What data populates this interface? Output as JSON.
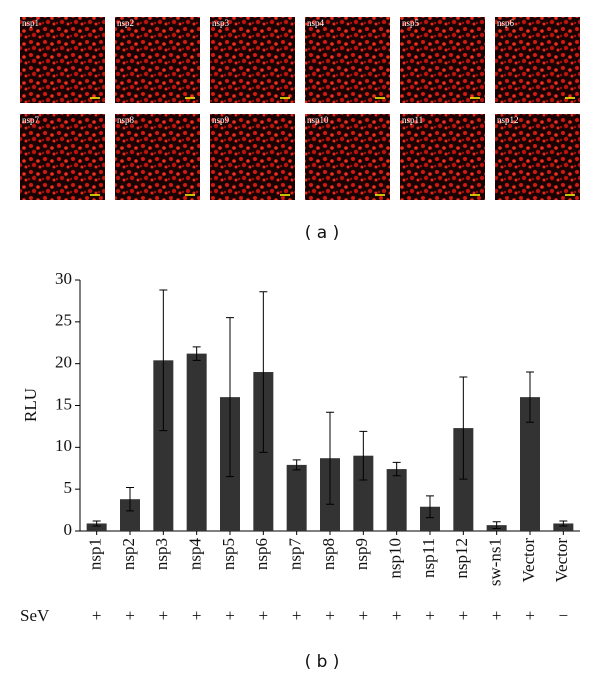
{
  "panel_a": {
    "labels": [
      "nsp1",
      "nsp2",
      "nsp3",
      "nsp4",
      "nsp5",
      "nsp6",
      "nsp7",
      "nsp8",
      "nsp9",
      "nsp10",
      "nsp11",
      "nsp12"
    ],
    "caption": "( a )"
  },
  "chart_data": {
    "type": "bar",
    "ylabel": "RLU",
    "categories": [
      "nsp1",
      "nsp2",
      "nsp3",
      "nsp4",
      "nsp5",
      "nsp6",
      "nsp7",
      "nsp8",
      "nsp9",
      "nsp10",
      "nsp11",
      "nsp12",
      "sw-ns1",
      "Vector",
      "Vector"
    ],
    "values": [
      0.9,
      3.8,
      20.4,
      21.2,
      16,
      19,
      7.9,
      8.7,
      9,
      7.4,
      2.9,
      12.3,
      0.7,
      16,
      0.9
    ],
    "errors": [
      0.3,
      1.4,
      8.4,
      0.8,
      9.5,
      9.6,
      0.6,
      5.5,
      2.9,
      0.8,
      1.3,
      6.1,
      0.4,
      3,
      0.3
    ],
    "color": "#333333",
    "ylim": [
      0,
      30
    ],
    "yticks": [
      0,
      5,
      10,
      15,
      20,
      25,
      30
    ],
    "caption": "( b )"
  },
  "treatment": {
    "label": "SeV",
    "marks": [
      "+",
      "+",
      "+",
      "+",
      "+",
      "+",
      "+",
      "+",
      "+",
      "+",
      "+",
      "+",
      "+",
      "+",
      "−"
    ]
  }
}
